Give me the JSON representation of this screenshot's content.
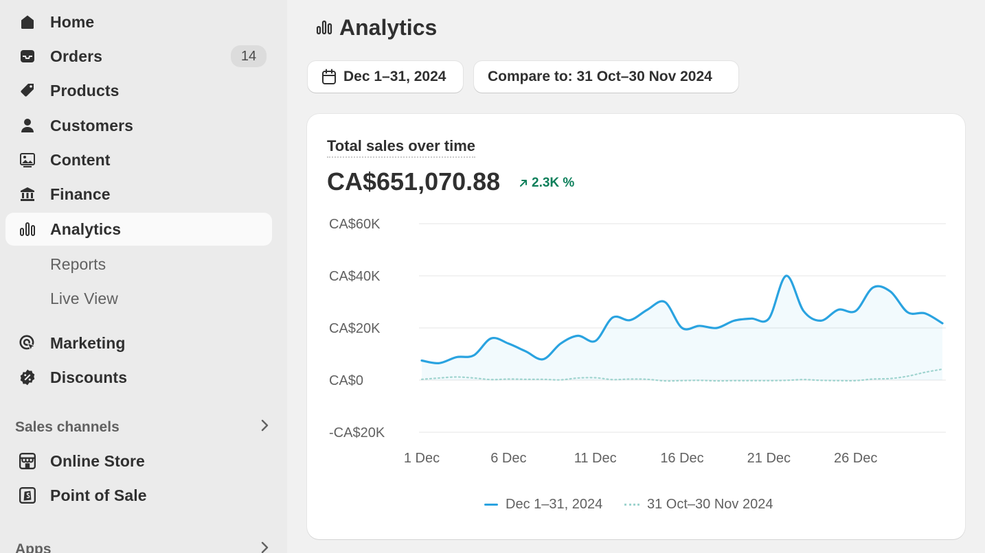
{
  "sidebar": {
    "items": [
      {
        "label": "Home",
        "icon": "home-icon"
      },
      {
        "label": "Orders",
        "icon": "inbox-icon",
        "badge": "14"
      },
      {
        "label": "Products",
        "icon": "tag-icon"
      },
      {
        "label": "Customers",
        "icon": "person-icon"
      },
      {
        "label": "Content",
        "icon": "image-icon"
      },
      {
        "label": "Finance",
        "icon": "bank-icon"
      },
      {
        "label": "Analytics",
        "icon": "analytics-icon",
        "active": true
      },
      {
        "label": "Reports"
      },
      {
        "label": "Live View"
      },
      {
        "label": "Marketing",
        "icon": "target-icon"
      },
      {
        "label": "Discounts",
        "icon": "discount-icon"
      }
    ],
    "sales_channels": {
      "label": "Sales channels",
      "items": [
        {
          "label": "Online Store",
          "icon": "store-icon"
        },
        {
          "label": "Point of Sale",
          "icon": "shopify-bag-icon"
        }
      ]
    },
    "apps": {
      "label": "Apps"
    }
  },
  "page": {
    "title": "Analytics",
    "date_range_label": "Dec 1–31, 2024",
    "compare_label": "Compare to: 31 Oct–30 Nov 2024"
  },
  "card": {
    "title": "Total sales over time",
    "value": "CA$651,070.88",
    "change": "2.3K %",
    "change_color": "#0c7f5a"
  },
  "colors": {
    "primary_series": "#2aa3e0",
    "comparison_series": "#9fd4cf",
    "active_nav_bg": "#fafafa",
    "sidebar_bg": "#ebebeb"
  },
  "chart_data": {
    "type": "line",
    "title": "Total sales over time",
    "x": [
      "1 Dec",
      "2 Dec",
      "3 Dec",
      "4 Dec",
      "5 Dec",
      "6 Dec",
      "7 Dec",
      "8 Dec",
      "9 Dec",
      "10 Dec",
      "11 Dec",
      "12 Dec",
      "13 Dec",
      "14 Dec",
      "15 Dec",
      "16 Dec",
      "17 Dec",
      "18 Dec",
      "19 Dec",
      "20 Dec",
      "21 Dec",
      "22 Dec",
      "23 Dec",
      "24 Dec",
      "25 Dec",
      "26 Dec",
      "27 Dec",
      "28 Dec",
      "29 Dec",
      "30 Dec",
      "31 Dec"
    ],
    "x_ticks": [
      "1 Dec",
      "6 Dec",
      "11 Dec",
      "16 Dec",
      "21 Dec",
      "26 Dec"
    ],
    "y_ticks": [
      "CA$60K",
      "CA$40K",
      "CA$20K",
      "CA$0",
      "-CA$20K"
    ],
    "y_tick_values": [
      60000,
      40000,
      20000,
      0,
      -20000
    ],
    "ylim": [
      -20000,
      60000
    ],
    "grid": true,
    "legend_position": "bottom-center",
    "series": [
      {
        "name": "Dec 1–31, 2024",
        "style": "solid",
        "values": [
          7500,
          6500,
          8800,
          9500,
          16000,
          14000,
          11000,
          8000,
          14000,
          17000,
          15000,
          24000,
          23000,
          27000,
          30000,
          20000,
          20800,
          20000,
          22800,
          23600,
          23600,
          40000,
          26500,
          22800,
          27000,
          26500,
          35500,
          34000,
          26000,
          25600,
          21800
        ]
      },
      {
        "name": "31 Oct–30 Nov 2024",
        "style": "dotted",
        "values": [
          300,
          800,
          1200,
          800,
          200,
          400,
          300,
          300,
          100,
          800,
          900,
          200,
          400,
          300,
          -300,
          -200,
          -100,
          -300,
          -200,
          -200,
          -200,
          -100,
          200,
          -100,
          -200,
          -200,
          400,
          600,
          1500,
          3000,
          4200
        ]
      }
    ]
  }
}
